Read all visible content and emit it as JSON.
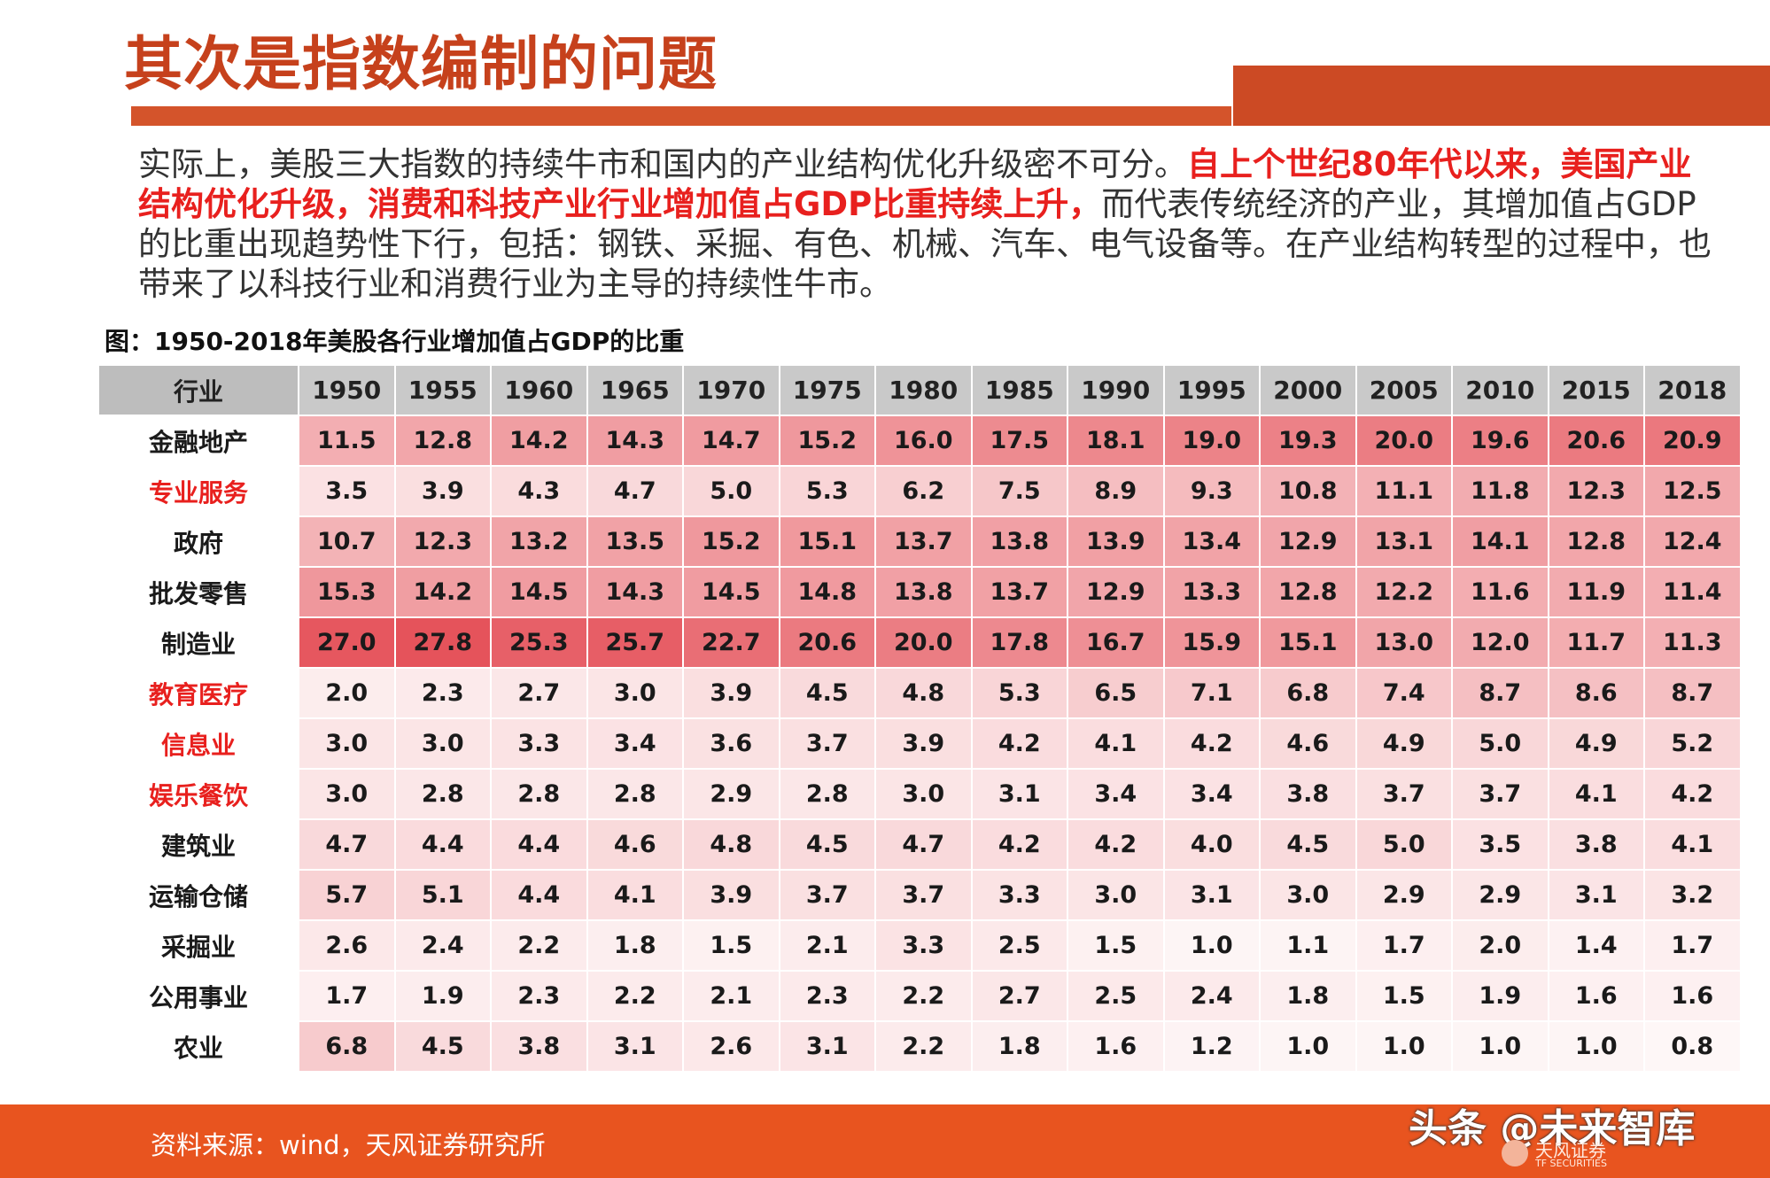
{
  "title": "其次是指数编制的问题",
  "intro": {
    "part1": "实际上，美股三大指数的持续牛市和国内的产业结构优化升级密不可分。",
    "part2_highlight": "自上个世纪80年代以来，美国产业结构优化升级，消费和科技产业行业增加值占GDP比重持续上升，",
    "part3": "而代表传统经济的产业，其增加值占GDP的比重出现趋势性下行，包括：钢铁、采掘、有色、机械、汽车、电气设备等。在产业结构转型的过程中，也带来了以科技行业和消费行业为主导的持续性牛市。"
  },
  "caption": "图：1950-2018年美股各行业增加值占GDP的比重",
  "table": {
    "header_label": "行业",
    "years": [
      "1950",
      "1955",
      "1960",
      "1965",
      "1970",
      "1975",
      "1980",
      "1985",
      "1990",
      "1995",
      "2000",
      "2005",
      "2010",
      "2015",
      "2018"
    ],
    "rows": [
      {
        "label": "金融地产",
        "highlight": false,
        "values": [
          "11.5",
          "12.8",
          "14.2",
          "14.3",
          "14.7",
          "15.2",
          "16.0",
          "17.5",
          "18.1",
          "19.0",
          "19.3",
          "20.0",
          "19.6",
          "20.6",
          "20.9"
        ]
      },
      {
        "label": "专业服务",
        "highlight": true,
        "values": [
          "3.5",
          "3.9",
          "4.3",
          "4.7",
          "5.0",
          "5.3",
          "6.2",
          "7.5",
          "8.9",
          "9.3",
          "10.8",
          "11.1",
          "11.8",
          "12.3",
          "12.5"
        ]
      },
      {
        "label": "政府",
        "highlight": false,
        "values": [
          "10.7",
          "12.3",
          "13.2",
          "13.5",
          "15.2",
          "15.1",
          "13.7",
          "13.8",
          "13.9",
          "13.4",
          "12.9",
          "13.1",
          "14.1",
          "12.8",
          "12.4"
        ]
      },
      {
        "label": "批发零售",
        "highlight": false,
        "values": [
          "15.3",
          "14.2",
          "14.5",
          "14.3",
          "14.5",
          "14.8",
          "13.8",
          "13.7",
          "12.9",
          "13.3",
          "12.8",
          "12.2",
          "11.6",
          "11.9",
          "11.4"
        ]
      },
      {
        "label": "制造业",
        "highlight": false,
        "values": [
          "27.0",
          "27.8",
          "25.3",
          "25.7",
          "22.7",
          "20.6",
          "20.0",
          "17.8",
          "16.7",
          "15.9",
          "15.1",
          "13.0",
          "12.0",
          "11.7",
          "11.3"
        ]
      },
      {
        "label": "教育医疗",
        "highlight": true,
        "values": [
          "2.0",
          "2.3",
          "2.7",
          "3.0",
          "3.9",
          "4.5",
          "4.8",
          "5.3",
          "6.5",
          "7.1",
          "6.8",
          "7.4",
          "8.7",
          "8.6",
          "8.7"
        ]
      },
      {
        "label": "信息业",
        "highlight": true,
        "values": [
          "3.0",
          "3.0",
          "3.3",
          "3.4",
          "3.6",
          "3.7",
          "3.9",
          "4.2",
          "4.1",
          "4.2",
          "4.6",
          "4.9",
          "5.0",
          "4.9",
          "5.2"
        ]
      },
      {
        "label": "娱乐餐饮",
        "highlight": true,
        "values": [
          "3.0",
          "2.8",
          "2.8",
          "2.8",
          "2.9",
          "2.8",
          "3.0",
          "3.1",
          "3.4",
          "3.4",
          "3.8",
          "3.7",
          "3.7",
          "4.1",
          "4.2"
        ]
      },
      {
        "label": "建筑业",
        "highlight": false,
        "values": [
          "4.7",
          "4.4",
          "4.4",
          "4.6",
          "4.8",
          "4.5",
          "4.7",
          "4.2",
          "4.2",
          "4.0",
          "4.5",
          "5.0",
          "3.5",
          "3.8",
          "4.1"
        ]
      },
      {
        "label": "运输仓储",
        "highlight": false,
        "values": [
          "5.7",
          "5.1",
          "4.4",
          "4.1",
          "3.9",
          "3.7",
          "3.7",
          "3.3",
          "3.0",
          "3.1",
          "3.0",
          "2.9",
          "2.9",
          "3.1",
          "3.2"
        ]
      },
      {
        "label": "采掘业",
        "highlight": false,
        "values": [
          "2.6",
          "2.4",
          "2.2",
          "1.8",
          "1.5",
          "2.1",
          "3.3",
          "2.5",
          "1.5",
          "1.0",
          "1.1",
          "1.7",
          "2.0",
          "1.4",
          "1.7"
        ]
      },
      {
        "label": "公用事业",
        "highlight": false,
        "values": [
          "1.7",
          "1.9",
          "2.3",
          "2.2",
          "2.1",
          "2.3",
          "2.2",
          "2.7",
          "2.5",
          "2.4",
          "1.8",
          "1.5",
          "1.9",
          "1.6",
          "1.6"
        ]
      },
      {
        "label": "农业",
        "highlight": false,
        "values": [
          "6.8",
          "4.5",
          "3.8",
          "3.1",
          "2.6",
          "3.1",
          "2.2",
          "1.8",
          "1.6",
          "1.2",
          "1.0",
          "1.0",
          "1.0",
          "1.0",
          "0.8"
        ]
      }
    ]
  },
  "colors": {
    "title": "#c6411c",
    "highlight_text": "#e8201e",
    "footer": "#e8541f",
    "heat_low": "#ffffff",
    "heat_high": "#e5535b"
  },
  "footer": {
    "source": "资料来源：wind，天风证券研究所",
    "watermark": "头条 @未来智库",
    "logo_cn": "天风证券",
    "logo_en": "TF SECURITIES"
  }
}
